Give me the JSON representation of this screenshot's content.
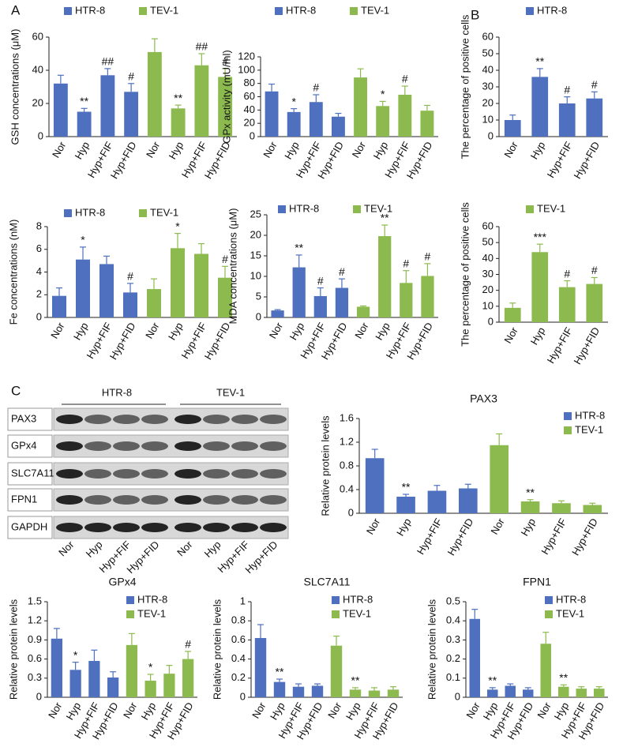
{
  "panel_labels": [
    "A",
    "B",
    "C"
  ],
  "blot": {
    "groups": [
      "HTR-8",
      "TEV-1"
    ],
    "rows": [
      "PAX3",
      "GPx4",
      "SLC7A11",
      "FPN1",
      "GAPDH"
    ],
    "lanes": [
      "Nor",
      "Hyp",
      "Hyp+FIF",
      "Hyp+FID",
      "Nor",
      "Hyp",
      "Hyp+FIF",
      "Hyp+FID"
    ]
  },
  "chart_data": [
    {
      "type": "bar",
      "ylabel": "GSH concentrations (μM)",
      "legend": "top",
      "categories": [
        "Nor",
        "Hyp",
        "Hyp+FIF",
        "Hyp+FID",
        "Nor",
        "Hyp",
        "Hyp+FIF",
        "Hyp+FID"
      ],
      "ylim": [
        0,
        60
      ],
      "yticks": [
        0,
        20,
        40,
        60
      ],
      "series": [
        {
          "name": "HTR-8",
          "color": "#4e70be",
          "values": [
            32,
            15,
            37,
            27,
            null,
            null,
            null,
            null
          ],
          "errors": [
            5,
            2,
            4,
            5,
            null,
            null,
            null,
            null
          ],
          "annotations": [
            null,
            "**",
            "##",
            "#",
            null,
            null,
            null,
            null
          ]
        },
        {
          "name": "TEV-1",
          "color": "#8dba4f",
          "values": [
            null,
            null,
            null,
            null,
            51,
            17,
            43,
            36
          ],
          "errors": [
            null,
            null,
            null,
            null,
            8,
            2,
            7,
            5
          ],
          "annotations": [
            null,
            null,
            null,
            null,
            null,
            "**",
            "##",
            "#"
          ]
        }
      ]
    },
    {
      "type": "bar",
      "ylabel": "GPx activity (mU/ml)",
      "legend": "top",
      "categories": [
        "Nor",
        "Hyp",
        "Hyp+FIF",
        "Hyp+FID",
        "Nor",
        "Hyp",
        "Hyp+FIF",
        "Hyp+FID"
      ],
      "ylim": [
        0,
        120
      ],
      "yticks": [
        0,
        20,
        40,
        60,
        80,
        100,
        120
      ],
      "series": [
        {
          "name": "HTR-8",
          "color": "#4e70be",
          "values": [
            68,
            37,
            52,
            30,
            null,
            null,
            null,
            null
          ],
          "errors": [
            11,
            5,
            11,
            5,
            null,
            null,
            null,
            null
          ],
          "annotations": [
            null,
            "*",
            "#",
            null,
            null,
            null,
            null,
            null
          ]
        },
        {
          "name": "TEV-1",
          "color": "#8dba4f",
          "values": [
            null,
            null,
            null,
            null,
            89,
            46,
            63,
            39
          ],
          "errors": [
            null,
            null,
            null,
            null,
            13,
            7,
            13,
            8
          ],
          "annotations": [
            null,
            null,
            null,
            null,
            null,
            "*",
            "#",
            null
          ]
        }
      ]
    },
    {
      "type": "bar",
      "ylabel": "The percentage of positive cells",
      "legend": "top",
      "categories": [
        "Nor",
        "Hyp",
        "Hyp+FIF",
        "Hyp+FID"
      ],
      "ylim": [
        0,
        60
      ],
      "yticks": [
        0,
        10,
        20,
        30,
        40,
        50,
        60
      ],
      "series": [
        {
          "name": "HTR-8",
          "color": "#4e70be",
          "values": [
            10,
            36,
            20,
            23
          ],
          "errors": [
            3,
            5,
            4,
            4
          ],
          "annotations": [
            null,
            "**",
            "#",
            "#"
          ]
        }
      ]
    },
    {
      "type": "bar",
      "ylabel": "Fe concentrations (nM)",
      "legend": "top",
      "categories": [
        "Nor",
        "Hyp",
        "Hyp+FIF",
        "Hyp+FID",
        "Nor",
        "Hyp",
        "Hyp+FIF",
        "Hyp+FID"
      ],
      "ylim": [
        0,
        8
      ],
      "yticks": [
        0,
        2,
        4,
        6,
        8
      ],
      "series": [
        {
          "name": "HTR-8",
          "color": "#4e70be",
          "values": [
            1.9,
            5.1,
            4.7,
            2.2,
            null,
            null,
            null,
            null
          ],
          "errors": [
            0.7,
            1.1,
            0.7,
            0.8,
            null,
            null,
            null,
            null
          ],
          "annotations": [
            null,
            "*",
            null,
            "#",
            null,
            null,
            null,
            null
          ]
        },
        {
          "name": "TEV-1",
          "color": "#8dba4f",
          "values": [
            null,
            null,
            null,
            null,
            2.5,
            6.1,
            5.6,
            3.5
          ],
          "errors": [
            null,
            null,
            null,
            null,
            0.9,
            1.3,
            0.9,
            1
          ],
          "annotations": [
            null,
            null,
            null,
            null,
            null,
            "*",
            null,
            "#"
          ]
        }
      ]
    },
    {
      "type": "bar",
      "ylabel": "MDA concentrations (μM)",
      "legend": "top",
      "categories": [
        "Nor",
        "Hyp",
        "Hyp+FIF",
        "Hyp+FID",
        "Nor",
        "Hyp",
        "Hyp+FIF",
        "Hyp+FID"
      ],
      "ylim": [
        0,
        25
      ],
      "yticks": [
        0,
        5,
        10,
        15,
        20,
        25
      ],
      "series": [
        {
          "name": "HTR-8",
          "color": "#4e70be",
          "values": [
            1.7,
            12.2,
            5.2,
            7.2,
            null,
            null,
            null,
            null
          ],
          "errors": [
            0.2,
            3,
            2,
            2.2,
            null,
            null,
            null,
            null
          ],
          "annotations": [
            null,
            "**",
            "#",
            "#",
            null,
            null,
            null,
            null
          ]
        },
        {
          "name": "TEV-1",
          "color": "#8dba4f",
          "values": [
            null,
            null,
            null,
            null,
            2.6,
            19.8,
            8.4,
            10.1
          ],
          "errors": [
            null,
            null,
            null,
            null,
            0.2,
            2.7,
            3,
            3
          ],
          "annotations": [
            null,
            null,
            null,
            null,
            null,
            "**",
            "#",
            "#"
          ]
        }
      ]
    },
    {
      "type": "bar",
      "ylabel": "The percentage of positive cells",
      "legend": "top",
      "categories": [
        "Nor",
        "Hyp",
        "Hyp+FIF",
        "Hyp+FID"
      ],
      "ylim": [
        0,
        60
      ],
      "yticks": [
        0,
        10,
        20,
        30,
        40,
        50,
        60
      ],
      "series": [
        {
          "name": "TEV-1",
          "color": "#8dba4f",
          "values": [
            9,
            44,
            22,
            24
          ],
          "errors": [
            3,
            5,
            4,
            4
          ],
          "annotations": [
            null,
            "***",
            "#",
            "#"
          ]
        }
      ]
    },
    {
      "type": "bar",
      "title": "PAX3",
      "ylabel": "Relative protein levels",
      "legend": "upper right",
      "categories": [
        "Nor",
        "Hyp",
        "Hyp+FIF",
        "Hyp+FID",
        "Nor",
        "Hyp",
        "Hyp+FIF",
        "Hyp+FID"
      ],
      "ylim": [
        0,
        1.6
      ],
      "yticks": [
        0,
        0.4,
        0.8,
        1.2,
        1.6
      ],
      "series": [
        {
          "name": "HTR-8",
          "color": "#4e70be",
          "values": [
            0.93,
            0.28,
            0.38,
            0.42,
            null,
            null,
            null,
            null
          ],
          "errors": [
            0.15,
            0.04,
            0.09,
            0.07,
            null,
            null,
            null,
            null
          ],
          "annotations": [
            null,
            "**",
            null,
            null,
            null,
            null,
            null,
            null
          ]
        },
        {
          "name": "TEV-1",
          "color": "#8dba4f",
          "values": [
            null,
            null,
            null,
            null,
            1.15,
            0.2,
            0.17,
            0.14
          ],
          "errors": [
            null,
            null,
            null,
            null,
            0.19,
            0.03,
            0.04,
            0.03
          ],
          "annotations": [
            null,
            null,
            null,
            null,
            null,
            "**",
            null,
            null
          ]
        }
      ]
    },
    {
      "type": "bar",
      "title": "GPx4",
      "ylabel": "Relative protein levels",
      "legend": "upper right",
      "categories": [
        "Nor",
        "Hyp",
        "Hyp+FIF",
        "Hyp+FID",
        "Nor",
        "Hyp",
        "Hyp+FIF",
        "Hyp+FID"
      ],
      "ylim": [
        0,
        1.5
      ],
      "yticks": [
        0,
        0.3,
        0.6,
        0.9,
        1.2,
        1.5
      ],
      "series": [
        {
          "name": "HTR-8",
          "color": "#4e70be",
          "values": [
            0.92,
            0.43,
            0.57,
            0.31,
            null,
            null,
            null,
            null
          ],
          "errors": [
            0.16,
            0.12,
            0.17,
            0.09,
            null,
            null,
            null,
            null
          ],
          "annotations": [
            null,
            "*",
            null,
            null,
            null,
            null,
            null,
            null
          ]
        },
        {
          "name": "TEV-1",
          "color": "#8dba4f",
          "values": [
            null,
            null,
            null,
            null,
            0.82,
            0.26,
            0.37,
            0.6
          ],
          "errors": [
            null,
            null,
            null,
            null,
            0.18,
            0.1,
            0.13,
            0.12
          ],
          "annotations": [
            null,
            null,
            null,
            null,
            null,
            "*",
            null,
            "#"
          ]
        }
      ]
    },
    {
      "type": "bar",
      "title": "SLC7A11",
      "ylabel": "Relative protein levels",
      "legend": "upper right",
      "categories": [
        "Nor",
        "Hyp",
        "Hyp+FIF",
        "Hyp+FID",
        "Nor",
        "Hyp",
        "Hyp+FIF",
        "Hyp+FID"
      ],
      "ylim": [
        0,
        1
      ],
      "yticks": [
        0,
        0.2,
        0.4,
        0.6,
        0.8,
        1
      ],
      "series": [
        {
          "name": "HTR-8",
          "color": "#4e70be",
          "values": [
            0.62,
            0.16,
            0.11,
            0.12,
            null,
            null,
            null,
            null
          ],
          "errors": [
            0.14,
            0.03,
            0.03,
            0.02,
            null,
            null,
            null,
            null
          ],
          "annotations": [
            null,
            "**",
            null,
            null,
            null,
            null,
            null,
            null
          ]
        },
        {
          "name": "TEV-1",
          "color": "#8dba4f",
          "values": [
            null,
            null,
            null,
            null,
            0.54,
            0.08,
            0.07,
            0.08
          ],
          "errors": [
            null,
            null,
            null,
            null,
            0.1,
            0.02,
            0.03,
            0.03
          ],
          "annotations": [
            null,
            null,
            null,
            null,
            null,
            "**",
            null,
            null
          ]
        }
      ]
    },
    {
      "type": "bar",
      "title": "FPN1",
      "ylabel": "Relative protein levels",
      "legend": "upper right",
      "categories": [
        "Nor",
        "Hyp",
        "Hyp+FIF",
        "Hyp+FID",
        "Nor",
        "Hyp",
        "Hyp+FIF",
        "Hyp+FID"
      ],
      "ylim": [
        0,
        0.5
      ],
      "yticks": [
        0,
        0.1,
        0.2,
        0.3,
        0.4,
        0.5
      ],
      "series": [
        {
          "name": "HTR-8",
          "color": "#4e70be",
          "values": [
            0.41,
            0.04,
            0.06,
            0.04,
            null,
            null,
            null,
            null
          ],
          "errors": [
            0.05,
            0.01,
            0.01,
            0.01,
            null,
            null,
            null,
            null
          ],
          "annotations": [
            null,
            "**",
            null,
            null,
            null,
            null,
            null,
            null
          ]
        },
        {
          "name": "TEV-1",
          "color": "#8dba4f",
          "values": [
            null,
            null,
            null,
            null,
            0.28,
            0.055,
            0.045,
            0.045
          ],
          "errors": [
            null,
            null,
            null,
            null,
            0.06,
            0.01,
            0.01,
            0.01
          ],
          "annotations": [
            null,
            null,
            null,
            null,
            null,
            "**",
            null,
            null
          ]
        }
      ]
    }
  ]
}
